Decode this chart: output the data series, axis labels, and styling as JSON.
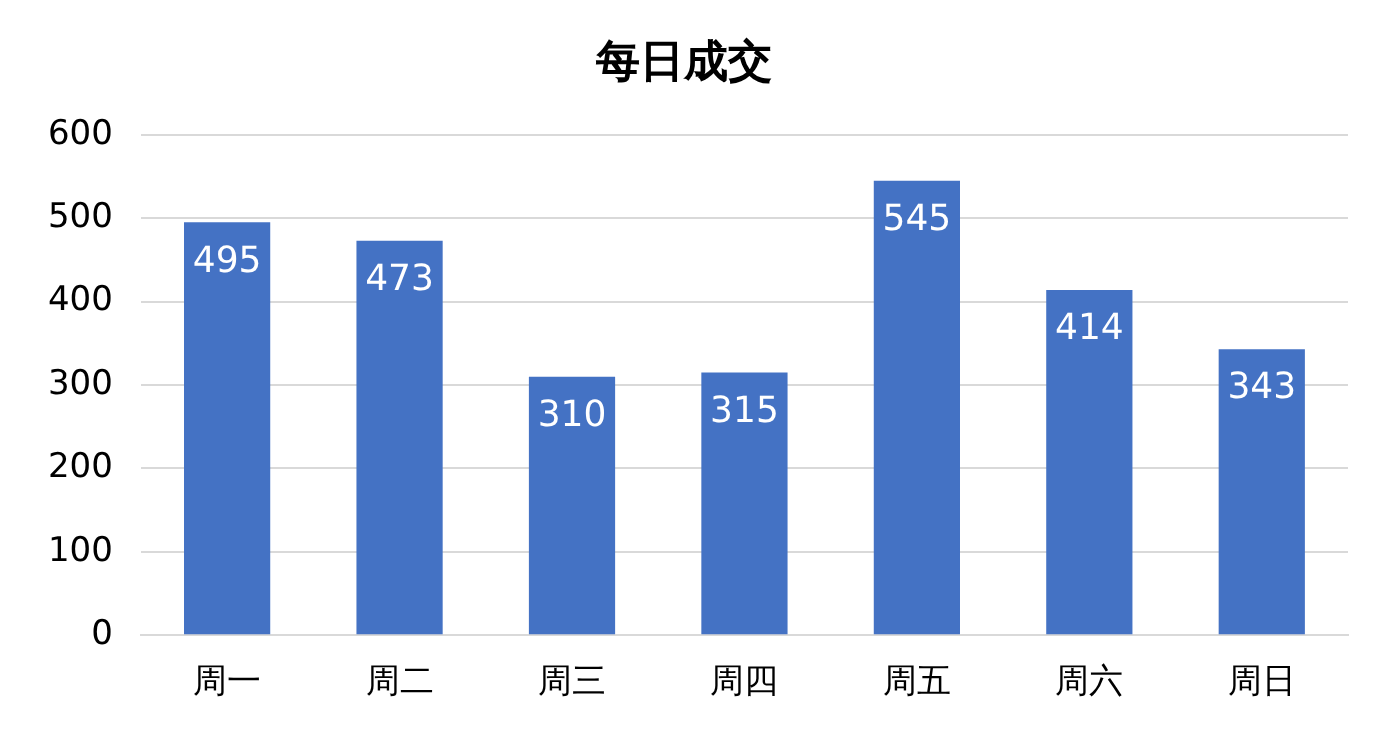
{
  "chart_data": {
    "type": "bar",
    "title": "每日成交",
    "categories": [
      "周一",
      "周二",
      "周三",
      "周四",
      "周五",
      "周六",
      "周日"
    ],
    "values": [
      495,
      473,
      310,
      315,
      545,
      414,
      343
    ],
    "color": "#4472c4",
    "ylim": [
      0,
      600
    ],
    "yticks": [
      0,
      100,
      200,
      300,
      400,
      500,
      600
    ],
    "grid": "y",
    "data_labels": true
  }
}
